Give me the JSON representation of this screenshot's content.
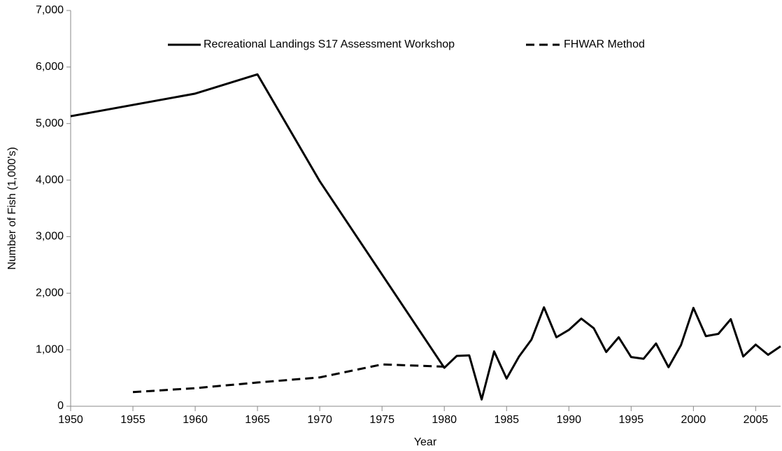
{
  "chart_data": {
    "type": "line",
    "x_label": "Year",
    "y_label": "Number of Fish (1,000's)",
    "xlim": [
      1950,
      2007
    ],
    "xticks": [
      1950,
      1955,
      1960,
      1965,
      1970,
      1975,
      1980,
      1985,
      1990,
      1995,
      2000,
      2005
    ],
    "ylim": [
      0,
      7000
    ],
    "yticks": [
      0,
      {
        "value": 1000,
        "label": "1,000"
      },
      {
        "value": 2000,
        "label": "2,000"
      },
      {
        "value": 3000,
        "label": "3,000"
      },
      {
        "value": 4000,
        "label": "4,000"
      },
      {
        "value": 5000,
        "label": "5,000"
      },
      {
        "value": 6000,
        "label": "6,000"
      },
      {
        "value": 7000,
        "label": "7,000"
      }
    ],
    "series": [
      {
        "name": "Recreational Landings S17 Assessment Workshop",
        "color": "#000000",
        "line_style": "solid",
        "x": [
          1950,
          1960,
          1965,
          1970,
          1980,
          1981,
          1982,
          1983,
          1984,
          1985,
          1986,
          1987,
          1988,
          1989,
          1990,
          1991,
          1992,
          1993,
          1994,
          1995,
          1996,
          1997,
          1998,
          1999,
          2000,
          2001,
          2002,
          2003,
          2004,
          2005,
          2006,
          2007
        ],
        "values": [
          5130,
          5530,
          5870,
          3980,
          680,
          890,
          900,
          120,
          970,
          490,
          880,
          1180,
          1750,
          1220,
          1350,
          1550,
          1380,
          960,
          1220,
          870,
          840,
          1110,
          690,
          1080,
          1740,
          1240,
          1280,
          1540,
          880,
          1090,
          910,
          1060
        ]
      },
      {
        "name": "FHWAR Method",
        "color": "#000000",
        "line_style": "dashed",
        "x": [
          1955,
          1960,
          1965,
          1970,
          1975,
          1980
        ],
        "values": [
          250,
          320,
          420,
          510,
          740,
          700
        ]
      }
    ]
  }
}
